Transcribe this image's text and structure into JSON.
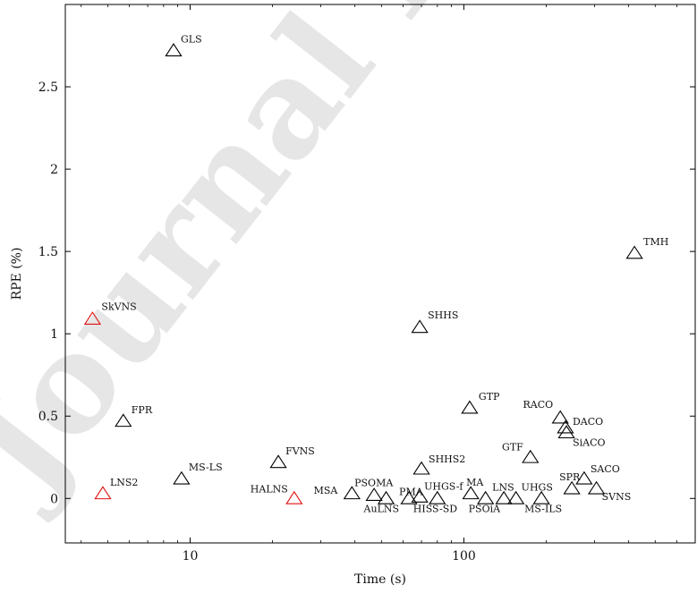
{
  "watermark": "Journal Pre-proof",
  "chart_data": {
    "type": "scatter",
    "xlabel": "Time (s)",
    "ylabel": "RPE (%)",
    "xscale": "log",
    "xlim": [
      3.5,
      700
    ],
    "ylim": [
      -0.27,
      3.0
    ],
    "xticks": [
      10,
      100
    ],
    "yticks": [
      0,
      0.5,
      1,
      1.5,
      2,
      2.5
    ],
    "grid": false,
    "legend": "none",
    "marker": "triangle-open",
    "colors": {
      "default": "#000000",
      "highlight": "#e01010"
    },
    "points": [
      {
        "label": "GLS",
        "x": 8.7,
        "y": 2.72,
        "highlight": false
      },
      {
        "label": "TMH",
        "x": 420,
        "y": 1.49,
        "highlight": false
      },
      {
        "label": "SkVNS",
        "x": 4.4,
        "y": 1.09,
        "highlight": true
      },
      {
        "label": "SHHS",
        "x": 69,
        "y": 1.04,
        "highlight": false
      },
      {
        "label": "FPR",
        "x": 5.7,
        "y": 0.47,
        "highlight": false
      },
      {
        "label": "GTP",
        "x": 105,
        "y": 0.55,
        "highlight": false
      },
      {
        "label": "RACO",
        "x": 225,
        "y": 0.49,
        "highlight": false
      },
      {
        "label": "DACO",
        "x": 235,
        "y": 0.43,
        "highlight": false
      },
      {
        "label": "SiACO",
        "x": 237,
        "y": 0.4,
        "highlight": false
      },
      {
        "label": "GTF",
        "x": 175,
        "y": 0.25,
        "highlight": false
      },
      {
        "label": "FVNS",
        "x": 21,
        "y": 0.22,
        "highlight": false
      },
      {
        "label": "SHHS2",
        "x": 70,
        "y": 0.18,
        "highlight": false
      },
      {
        "label": "MS-LS",
        "x": 9.3,
        "y": 0.12,
        "highlight": false
      },
      {
        "label": "LNS2",
        "x": 4.8,
        "y": 0.03,
        "highlight": true
      },
      {
        "label": "HALNS",
        "x": 24,
        "y": 0.0,
        "highlight": true
      },
      {
        "label": "MSA",
        "x": 39,
        "y": 0.03,
        "highlight": false
      },
      {
        "label": "PSOMA",
        "x": 47,
        "y": 0.02,
        "highlight": false
      },
      {
        "label": "AuLNS",
        "x": 52,
        "y": 0.0,
        "highlight": false
      },
      {
        "label": "PMA",
        "x": 63,
        "y": 0.0,
        "highlight": false
      },
      {
        "label": "UHGS-f",
        "x": 69,
        "y": 0.01,
        "highlight": false
      },
      {
        "label": "HISS-SD",
        "x": 80,
        "y": 0.0,
        "highlight": false
      },
      {
        "label": "MA",
        "x": 106,
        "y": 0.03,
        "highlight": false
      },
      {
        "label": "PSOiA",
        "x": 120,
        "y": 0.0,
        "highlight": false
      },
      {
        "label": "LNS",
        "x": 140,
        "y": 0.0,
        "highlight": false
      },
      {
        "label": "UHGS",
        "x": 155,
        "y": 0.0,
        "highlight": false
      },
      {
        "label": "MS-ILS",
        "x": 192,
        "y": 0.0,
        "highlight": false
      },
      {
        "label": "SPR",
        "x": 248,
        "y": 0.06,
        "highlight": false
      },
      {
        "label": "SACO",
        "x": 275,
        "y": 0.12,
        "highlight": false
      },
      {
        "label": "SVNS",
        "x": 305,
        "y": 0.06,
        "highlight": false
      }
    ]
  }
}
